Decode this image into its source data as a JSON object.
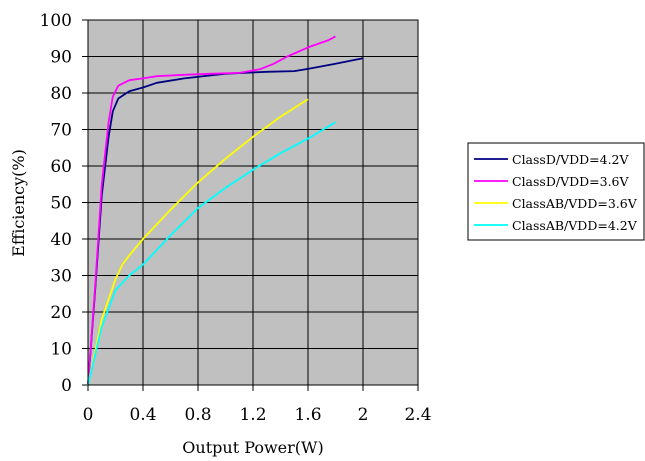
{
  "chart_data": {
    "type": "line",
    "title": "",
    "xlabel": "Output Power(W)",
    "ylabel": "Efficiency(%)",
    "xlim": [
      0,
      2.4
    ],
    "ylim": [
      0,
      100
    ],
    "x_ticks": [
      "0",
      "0.4",
      "0.8",
      "1.2",
      "1.6",
      "2",
      "2.4"
    ],
    "y_ticks": [
      "0",
      "10",
      "20",
      "30",
      "40",
      "50",
      "60",
      "70",
      "80",
      "90",
      "100"
    ],
    "grid": true,
    "plot_background": "#c0c0c0",
    "legend_position": "right",
    "series": [
      {
        "name": "ClassD/VDD=4.2V",
        "color": "#000080",
        "points": [
          [
            0,
            0
          ],
          [
            0.05,
            25
          ],
          [
            0.1,
            52
          ],
          [
            0.15,
            68
          ],
          [
            0.18,
            75
          ],
          [
            0.22,
            78.5
          ],
          [
            0.3,
            80.5
          ],
          [
            0.4,
            81.5
          ],
          [
            0.5,
            82.8
          ],
          [
            0.7,
            84
          ],
          [
            1.0,
            85.3
          ],
          [
            1.3,
            85.8
          ],
          [
            1.5,
            86
          ],
          [
            1.6,
            86.6
          ],
          [
            1.8,
            88
          ],
          [
            2.0,
            89.5
          ]
        ]
      },
      {
        "name": "ClassD/VDD=3.6V",
        "color": "#ff00ff",
        "points": [
          [
            0,
            0
          ],
          [
            0.05,
            26
          ],
          [
            0.1,
            55
          ],
          [
            0.15,
            72
          ],
          [
            0.18,
            79
          ],
          [
            0.22,
            82
          ],
          [
            0.3,
            83.5
          ],
          [
            0.4,
            84
          ],
          [
            0.5,
            84.6
          ],
          [
            0.7,
            85
          ],
          [
            0.9,
            85.3
          ],
          [
            1.1,
            85.5
          ],
          [
            1.25,
            86.5
          ],
          [
            1.35,
            88
          ],
          [
            1.45,
            90
          ],
          [
            1.6,
            92.5
          ],
          [
            1.75,
            94.5
          ],
          [
            1.8,
            95.5
          ]
        ]
      },
      {
        "name": "ClassAB/VDD=3.6V",
        "color": "#ffff00",
        "points": [
          [
            0,
            0
          ],
          [
            0.1,
            18
          ],
          [
            0.2,
            29
          ],
          [
            0.25,
            33
          ],
          [
            0.3,
            35.5
          ],
          [
            0.4,
            40
          ],
          [
            0.6,
            48
          ],
          [
            0.8,
            55.5
          ],
          [
            1.0,
            62
          ],
          [
            1.2,
            68
          ],
          [
            1.4,
            73.5
          ],
          [
            1.6,
            78.3
          ]
        ]
      },
      {
        "name": "ClassAB/VDD=4.2V",
        "color": "#00ffff",
        "points": [
          [
            0,
            0
          ],
          [
            0.1,
            16
          ],
          [
            0.2,
            26
          ],
          [
            0.3,
            30
          ],
          [
            0.4,
            33
          ],
          [
            0.6,
            41
          ],
          [
            0.8,
            48.5
          ],
          [
            1.0,
            54
          ],
          [
            1.2,
            59
          ],
          [
            1.4,
            63.5
          ],
          [
            1.6,
            67.5
          ],
          [
            1.8,
            72
          ]
        ]
      }
    ]
  }
}
